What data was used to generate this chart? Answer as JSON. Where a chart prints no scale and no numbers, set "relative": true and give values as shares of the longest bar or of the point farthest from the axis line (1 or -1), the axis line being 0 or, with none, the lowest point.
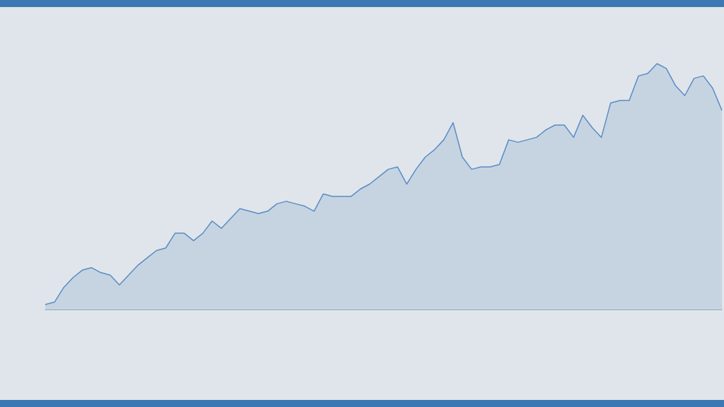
{
  "chart_data": {
    "type": "area",
    "relative": true,
    "color": "#5a8cc4",
    "categories": [
      null,
      null,
      null,
      null,
      null,
      null,
      null,
      null,
      null,
      null,
      null,
      null,
      null,
      null,
      null,
      null,
      null,
      null,
      null,
      null,
      null,
      null,
      null,
      null,
      null,
      null,
      null,
      null,
      null,
      null,
      null,
      null,
      null,
      null,
      null,
      null,
      null,
      null,
      null,
      null,
      null,
      null,
      null,
      null,
      null,
      null,
      null,
      null,
      null,
      null,
      null,
      null,
      null,
      null,
      null,
      null,
      null,
      null,
      null,
      null,
      null,
      null,
      null,
      null,
      null,
      null,
      null,
      null,
      null,
      null,
      null,
      null,
      null,
      null
    ],
    "values": [
      0.02,
      0.03,
      0.09,
      0.13,
      0.16,
      0.17,
      0.15,
      0.14,
      0.1,
      0.14,
      0.18,
      0.21,
      0.24,
      0.25,
      0.31,
      0.31,
      0.28,
      0.31,
      0.36,
      0.33,
      0.37,
      0.41,
      0.4,
      0.39,
      0.4,
      0.43,
      0.44,
      0.43,
      0.42,
      0.4,
      0.47,
      0.46,
      0.46,
      0.46,
      0.49,
      0.51,
      0.54,
      0.57,
      0.58,
      0.51,
      0.57,
      0.62,
      0.65,
      0.69,
      0.76,
      0.62,
      0.57,
      0.58,
      0.58,
      0.59,
      0.69,
      0.68,
      0.69,
      0.7,
      0.73,
      0.75,
      0.75,
      0.7,
      0.79,
      0.74,
      0.7,
      0.84,
      0.85,
      0.85,
      0.95,
      0.96,
      1,
      0.98,
      0.91,
      0.87,
      0.94,
      0.95,
      0.9,
      0.81
    ]
  }
}
